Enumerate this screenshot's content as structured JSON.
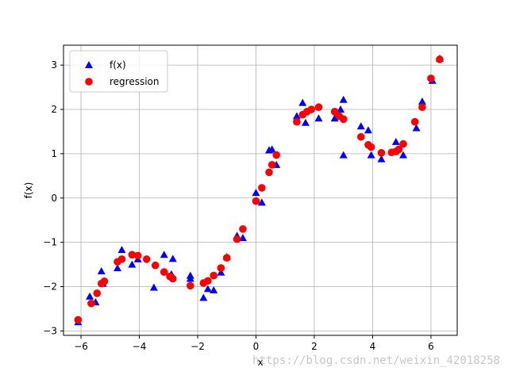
{
  "chart_data": {
    "type": "scatter",
    "xlabel": "x",
    "ylabel": "f(x)",
    "xlim": [
      -6.6,
      6.9
    ],
    "ylim": [
      -3.1,
      3.45
    ],
    "xticks": [
      -6,
      -4,
      -2,
      0,
      2,
      4,
      6
    ],
    "yticks": [
      -3,
      -2,
      -1,
      0,
      1,
      2,
      3
    ],
    "grid": true,
    "legend_position": "upper-left",
    "series": [
      {
        "name": "f(x)",
        "marker": "triangle",
        "color": "#0000ff",
        "points": [
          [
            -6.1,
            -2.8
          ],
          [
            -5.7,
            -2.22
          ],
          [
            -5.5,
            -2.35
          ],
          [
            -5.3,
            -1.65
          ],
          [
            -5.25,
            -1.93
          ],
          [
            -4.75,
            -1.58
          ],
          [
            -4.6,
            -1.17
          ],
          [
            -4.25,
            -1.5
          ],
          [
            -4.05,
            -1.38
          ],
          [
            -3.5,
            -2.02
          ],
          [
            -3.15,
            -1.28
          ],
          [
            -2.9,
            -1.72
          ],
          [
            -2.85,
            -1.37
          ],
          [
            -2.25,
            -1.75
          ],
          [
            -2.25,
            -1.82
          ],
          [
            -1.8,
            -2.25
          ],
          [
            -1.65,
            -2.05
          ],
          [
            -1.45,
            -2.08
          ],
          [
            -1.2,
            -1.68
          ],
          [
            -1.0,
            -1.33
          ],
          [
            -0.65,
            -0.85
          ],
          [
            -0.45,
            -0.9
          ],
          [
            0.0,
            0.12
          ],
          [
            0.2,
            -0.1
          ],
          [
            0.45,
            1.08
          ],
          [
            0.55,
            1.1
          ],
          [
            0.7,
            0.75
          ],
          [
            1.4,
            1.85
          ],
          [
            1.6,
            2.15
          ],
          [
            1.7,
            1.7
          ],
          [
            2.15,
            1.8
          ],
          [
            2.7,
            1.8
          ],
          [
            2.9,
            2.0
          ],
          [
            3.0,
            0.97
          ],
          [
            3.0,
            2.22
          ],
          [
            3.6,
            1.62
          ],
          [
            3.85,
            1.53
          ],
          [
            3.95,
            0.97
          ],
          [
            4.3,
            0.88
          ],
          [
            4.8,
            1.27
          ],
          [
            5.05,
            0.97
          ],
          [
            5.5,
            1.58
          ],
          [
            5.7,
            2.18
          ],
          [
            6.05,
            2.65
          ],
          [
            6.3,
            3.15
          ]
        ]
      },
      {
        "name": "regression",
        "marker": "circle",
        "color": "#ff0000",
        "points": [
          [
            -6.1,
            -2.75
          ],
          [
            -5.65,
            -2.38
          ],
          [
            -5.45,
            -2.15
          ],
          [
            -5.3,
            -1.93
          ],
          [
            -5.2,
            -1.88
          ],
          [
            -4.75,
            -1.44
          ],
          [
            -4.6,
            -1.38
          ],
          [
            -4.25,
            -1.28
          ],
          [
            -4.05,
            -1.3
          ],
          [
            -3.75,
            -1.38
          ],
          [
            -3.45,
            -1.52
          ],
          [
            -3.15,
            -1.67
          ],
          [
            -2.95,
            -1.77
          ],
          [
            -2.85,
            -1.82
          ],
          [
            -2.25,
            -1.98
          ],
          [
            -1.8,
            -1.92
          ],
          [
            -1.65,
            -1.87
          ],
          [
            -1.45,
            -1.75
          ],
          [
            -1.2,
            -1.58
          ],
          [
            -1.0,
            -1.35
          ],
          [
            -0.65,
            -0.93
          ],
          [
            -0.45,
            -0.7
          ],
          [
            0.0,
            -0.07
          ],
          [
            0.2,
            0.23
          ],
          [
            0.45,
            0.58
          ],
          [
            0.55,
            0.75
          ],
          [
            0.7,
            0.97
          ],
          [
            1.4,
            1.72
          ],
          [
            1.6,
            1.88
          ],
          [
            1.75,
            1.95
          ],
          [
            1.9,
            2.0
          ],
          [
            2.15,
            2.05
          ],
          [
            2.7,
            1.95
          ],
          [
            2.85,
            1.85
          ],
          [
            3.0,
            1.78
          ],
          [
            3.6,
            1.38
          ],
          [
            3.85,
            1.2
          ],
          [
            3.95,
            1.15
          ],
          [
            4.3,
            1.02
          ],
          [
            4.65,
            1.03
          ],
          [
            4.8,
            1.05
          ],
          [
            4.9,
            1.1
          ],
          [
            5.05,
            1.22
          ],
          [
            5.45,
            1.72
          ],
          [
            5.7,
            2.05
          ],
          [
            6.0,
            2.7
          ],
          [
            6.3,
            3.13
          ]
        ]
      }
    ]
  },
  "watermark": "https://blog.csdn.net/weixin_42018258"
}
